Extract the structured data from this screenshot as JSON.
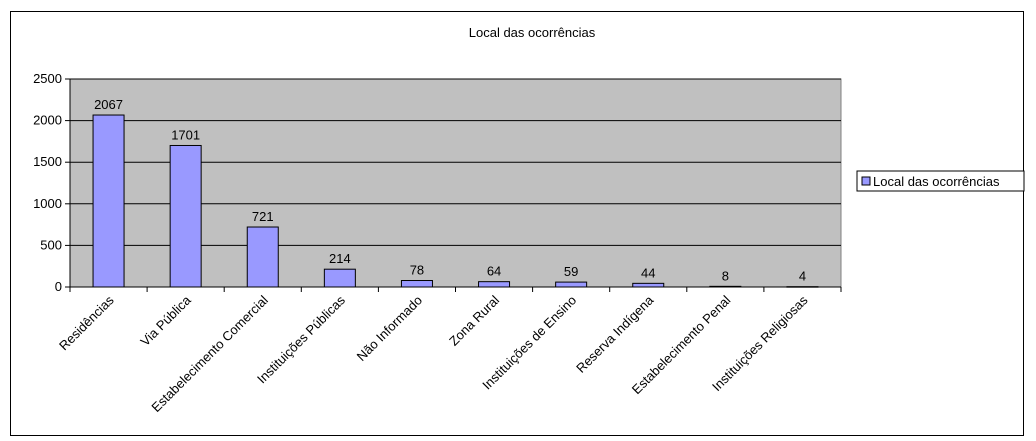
{
  "chart_data": {
    "type": "bar",
    "title": "Local das ocorrências",
    "xlabel": "",
    "ylabel": "",
    "categories": [
      "Residências",
      "Via Pública",
      "Estabelecimento Comercial",
      "Instituições Públicas",
      "Não Informado",
      "Zona Rural",
      "Instituições de Ensino",
      "Reserva Indígena",
      "Estabelecimento Penal",
      "Instituições Religiosas"
    ],
    "series": [
      {
        "name": "Local das ocorrências",
        "values": [
          2067,
          1701,
          721,
          214,
          78,
          64,
          59,
          44,
          8,
          4
        ],
        "color": "#9999ff"
      }
    ],
    "data_labels": [
      "2067",
      "1701",
      "721",
      "214",
      "78",
      "64",
      "59",
      "44",
      "8",
      "4"
    ],
    "ylim": [
      0,
      2500
    ],
    "yticks": [
      "0",
      "500",
      "1000",
      "1500",
      "2000",
      "2500"
    ],
    "grid": true,
    "plot_background": "#c0c0c0",
    "legend_position": "right"
  }
}
